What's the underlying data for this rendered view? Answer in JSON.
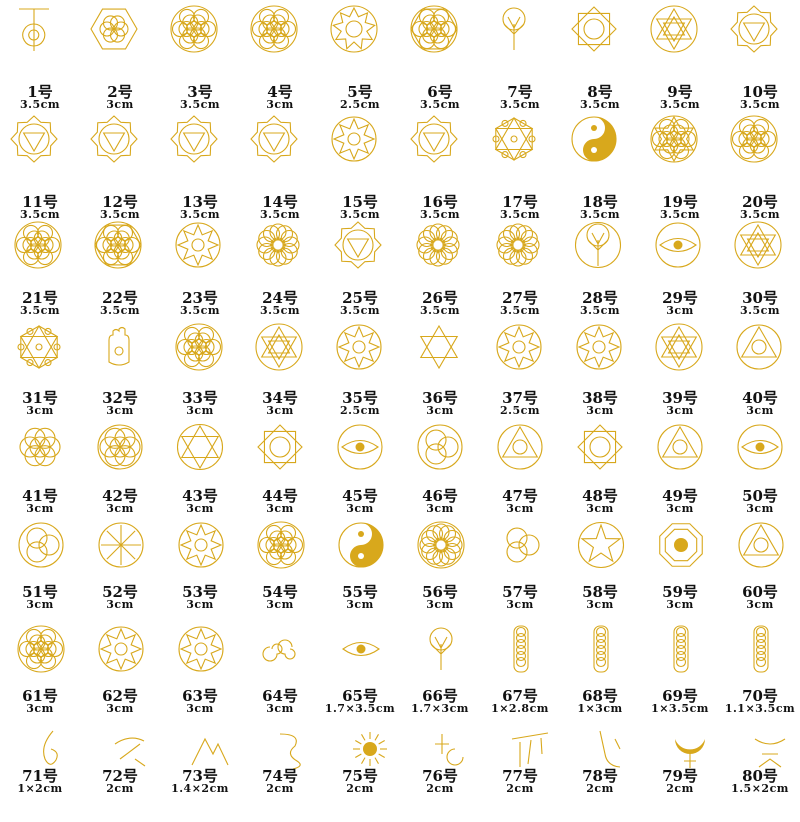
{
  "colors": {
    "gold": "#d8a81c",
    "text": "#111111",
    "background": "#ffffff"
  },
  "items": [
    {
      "num": "1号",
      "size": "3.5cm",
      "icon": "cho-ku-rei-spiral-icon"
    },
    {
      "num": "2号",
      "size": "3cm",
      "icon": "hexagon-flower-icon"
    },
    {
      "num": "3号",
      "size": "3.5cm",
      "icon": "flower-of-life-icon"
    },
    {
      "num": "4号",
      "size": "3cm",
      "icon": "flower-of-life-icon"
    },
    {
      "num": "5号",
      "size": "2.5cm",
      "icon": "nine-point-star-icon"
    },
    {
      "num": "6号",
      "size": "3.5cm",
      "icon": "flower-of-life-hexagon-icon"
    },
    {
      "num": "7号",
      "size": "3.5cm",
      "icon": "tree-of-life-icon"
    },
    {
      "num": "8号",
      "size": "3.5cm",
      "icon": "mandala-squares-icon"
    },
    {
      "num": "9号",
      "size": "3.5cm",
      "icon": "star-tetrahedron-icon"
    },
    {
      "num": "10号",
      "size": "3.5cm",
      "icon": "root-chakra-icon"
    },
    {
      "num": "11号",
      "size": "3.5cm",
      "icon": "sacral-chakra-icon"
    },
    {
      "num": "12号",
      "size": "3.5cm",
      "icon": "solar-plexus-chakra-icon"
    },
    {
      "num": "13号",
      "size": "3.5cm",
      "icon": "heart-chakra-icon"
    },
    {
      "num": "14号",
      "size": "3.5cm",
      "icon": "third-eye-chakra-icon"
    },
    {
      "num": "15号",
      "size": "3.5cm",
      "icon": "om-mandala-icon"
    },
    {
      "num": "16号",
      "size": "3.5cm",
      "icon": "throat-chakra-icon"
    },
    {
      "num": "17号",
      "size": "3.5cm",
      "icon": "metatron-cube-icon"
    },
    {
      "num": "18号",
      "size": "3.5cm",
      "icon": "yin-yang-flower-icon"
    },
    {
      "num": "19号",
      "size": "3.5cm",
      "icon": "flower-of-life-star-icon"
    },
    {
      "num": "20号",
      "size": "3.5cm",
      "icon": "flower-of-life-icon"
    },
    {
      "num": "21号",
      "size": "3.5cm",
      "icon": "flower-of-life-icon"
    },
    {
      "num": "22号",
      "size": "3.5cm",
      "icon": "flower-of-life-hexagon-icon"
    },
    {
      "num": "23号",
      "size": "3.5cm",
      "icon": "triskele-swirl-icon"
    },
    {
      "num": "24号",
      "size": "3.5cm",
      "icon": "lotus-mandala-icon"
    },
    {
      "num": "25号",
      "size": "3.5cm",
      "icon": "heart-chakra-mandala-icon"
    },
    {
      "num": "26号",
      "size": "3.5cm",
      "icon": "lotus-flower-icon"
    },
    {
      "num": "27号",
      "size": "3.5cm",
      "icon": "om-lotus-icon"
    },
    {
      "num": "28号",
      "size": "3.5cm",
      "icon": "tree-of-life-circle-icon"
    },
    {
      "num": "29号",
      "size": "3cm",
      "icon": "eye-of-horus-icon"
    },
    {
      "num": "30号",
      "size": "3.5cm",
      "icon": "sri-yantra-icon"
    },
    {
      "num": "31号",
      "size": "3cm",
      "icon": "metatron-cube-icon"
    },
    {
      "num": "32号",
      "size": "3cm",
      "icon": "hamsa-hand-icon"
    },
    {
      "num": "33号",
      "size": "3cm",
      "icon": "flower-of-life-icon"
    },
    {
      "num": "34号",
      "size": "3cm",
      "icon": "sri-yantra-icon"
    },
    {
      "num": "35号",
      "size": "2.5cm",
      "icon": "geometric-circle-icon"
    },
    {
      "num": "36号",
      "size": "3cm",
      "icon": "star-of-david-icon"
    },
    {
      "num": "37号",
      "size": "2.5cm",
      "icon": "celtic-knot-icon"
    },
    {
      "num": "38号",
      "size": "3cm",
      "icon": "star-circle-icon"
    },
    {
      "num": "39号",
      "size": "3cm",
      "icon": "star-tetrahedron-icon"
    },
    {
      "num": "40号",
      "size": "3cm",
      "icon": "alchemy-symbol-icon"
    },
    {
      "num": "41号",
      "size": "3cm",
      "icon": "seed-of-life-icon"
    },
    {
      "num": "42号",
      "size": "3cm",
      "icon": "circle-rosette-icon"
    },
    {
      "num": "43号",
      "size": "3cm",
      "icon": "hexagram-circle-icon"
    },
    {
      "num": "44号",
      "size": "3cm",
      "icon": "star-square-icon"
    },
    {
      "num": "45号",
      "size": "3cm",
      "icon": "all-seeing-eye-icon"
    },
    {
      "num": "46号",
      "size": "3cm",
      "icon": "triquetra-circle-icon"
    },
    {
      "num": "47号",
      "size": "3cm",
      "icon": "triangle-circle-icon"
    },
    {
      "num": "48号",
      "size": "3cm",
      "icon": "square-star-icon"
    },
    {
      "num": "49号",
      "size": "3cm",
      "icon": "triangle-eye-icon"
    },
    {
      "num": "50号",
      "size": "3cm",
      "icon": "eye-mandala-icon"
    },
    {
      "num": "51号",
      "size": "3cm",
      "icon": "triquetra-icon"
    },
    {
      "num": "52号",
      "size": "3cm",
      "icon": "vegvisir-icon"
    },
    {
      "num": "53号",
      "size": "3cm",
      "icon": "om-circle-icon"
    },
    {
      "num": "54号",
      "size": "3cm",
      "icon": "flower-of-life-icon"
    },
    {
      "num": "55号",
      "size": "3cm",
      "icon": "yin-yang-icon"
    },
    {
      "num": "56号",
      "size": "3cm",
      "icon": "lotus-circle-icon"
    },
    {
      "num": "57号",
      "size": "3cm",
      "icon": "triple-moon-icon"
    },
    {
      "num": "58号",
      "size": "3cm",
      "icon": "pentagram-icon"
    },
    {
      "num": "59号",
      "size": "3cm",
      "icon": "bagua-icon"
    },
    {
      "num": "60号",
      "size": "3cm",
      "icon": "eye-pyramid-icon"
    },
    {
      "num": "61号",
      "size": "3cm",
      "icon": "flower-of-life-icon"
    },
    {
      "num": "62号",
      "size": "3cm",
      "icon": "star-circle-icon"
    },
    {
      "num": "63号",
      "size": "3cm",
      "icon": "ornate-circle-icon"
    },
    {
      "num": "64号",
      "size": "3cm",
      "icon": "triple-spiral-icon"
    },
    {
      "num": "65号",
      "size": "1.7×3.5cm",
      "icon": "radiant-eye-icon"
    },
    {
      "num": "66号",
      "size": "1.7×3cm",
      "icon": "tree-of-life-icon"
    },
    {
      "num": "67号",
      "size": "1×2.8cm",
      "icon": "flower-of-life-strip-icon"
    },
    {
      "num": "68号",
      "size": "1×3cm",
      "icon": "flower-of-life-strip-icon"
    },
    {
      "num": "69号",
      "size": "1×3.5cm",
      "icon": "flower-of-life-strip-icon"
    },
    {
      "num": "70号",
      "size": "1.1×3.5cm",
      "icon": "flower-of-life-strip-icon"
    },
    {
      "num": "71号",
      "size": "1×2cm",
      "icon": "sacred-glyph-icon"
    },
    {
      "num": "72号",
      "size": "2cm",
      "icon": "sacred-glyph-icon"
    },
    {
      "num": "73号",
      "size": "1.4×2cm",
      "icon": "sacred-glyph-icon"
    },
    {
      "num": "74号",
      "size": "2cm",
      "icon": "sacred-glyph-icon"
    },
    {
      "num": "75号",
      "size": "2cm",
      "icon": "sun-glyph-icon"
    },
    {
      "num": "76号",
      "size": "2cm",
      "icon": "sacred-glyph-icon"
    },
    {
      "num": "77号",
      "size": "2cm",
      "icon": "sacred-glyph-icon"
    },
    {
      "num": "78号",
      "size": "2cm",
      "icon": "sacred-glyph-icon"
    },
    {
      "num": "79号",
      "size": "2cm",
      "icon": "crescent-glyph-icon"
    },
    {
      "num": "80号",
      "size": "1.5×2cm",
      "icon": "sacred-glyph-icon"
    }
  ]
}
